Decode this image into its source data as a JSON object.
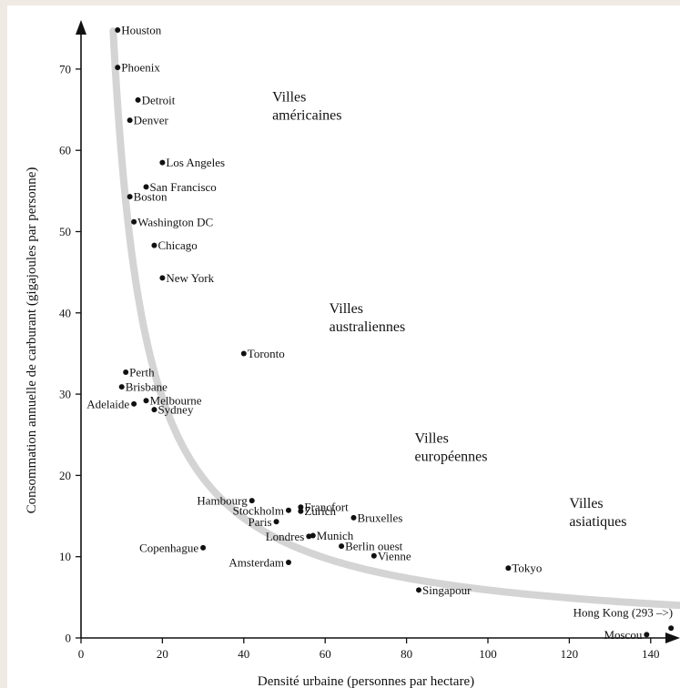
{
  "chart_data": {
    "type": "scatter",
    "xlabel": "Densité urbaine (personnes par hectare)",
    "ylabel": "Consommation annuelle de carburant (gigajoules  par personne)",
    "xlim": [
      0,
      147
    ],
    "ylim": [
      0,
      76
    ],
    "x_ticks": [
      0,
      20,
      40,
      60,
      80,
      100,
      120,
      140
    ],
    "y_ticks": [
      0,
      10,
      20,
      30,
      40,
      50,
      60,
      70
    ],
    "grid": false,
    "legend": "none",
    "trend_curve": "reciprocal (k/x)",
    "colors": {
      "points": "#111111",
      "curve": "#d4d4d4",
      "axis": "#111111"
    },
    "region_labels": [
      {
        "lines": [
          "Villes",
          "américaines"
        ],
        "x": 47,
        "y": 66
      },
      {
        "lines": [
          "Villes",
          "australiennes"
        ],
        "x": 61,
        "y": 40
      },
      {
        "lines": [
          "Villes",
          "européennes"
        ],
        "x": 82,
        "y": 24
      },
      {
        "lines": [
          "Villes",
          "asiatiques"
        ],
        "x": 120,
        "y": 16
      }
    ],
    "points": [
      {
        "label": "Houston",
        "x": 9,
        "y": 74.8,
        "side": "right"
      },
      {
        "label": "Phoenix",
        "x": 9,
        "y": 70.2,
        "side": "right"
      },
      {
        "label": "Detroit",
        "x": 14,
        "y": 66.2,
        "side": "right"
      },
      {
        "label": "Denver",
        "x": 12,
        "y": 63.7,
        "side": "right"
      },
      {
        "label": "Los Angeles",
        "x": 20,
        "y": 58.5,
        "side": "right"
      },
      {
        "label": "San Francisco",
        "x": 16,
        "y": 55.5,
        "side": "right"
      },
      {
        "label": "Boston",
        "x": 12,
        "y": 54.3,
        "side": "right"
      },
      {
        "label": "Washington DC",
        "x": 13,
        "y": 51.2,
        "side": "right"
      },
      {
        "label": "Chicago",
        "x": 18,
        "y": 48.3,
        "side": "right"
      },
      {
        "label": "New York",
        "x": 20,
        "y": 44.3,
        "side": "right"
      },
      {
        "label": "Toronto",
        "x": 40,
        "y": 35,
        "side": "right"
      },
      {
        "label": "Perth",
        "x": 11,
        "y": 32.7,
        "side": "right"
      },
      {
        "label": "Brisbane",
        "x": 10,
        "y": 30.9,
        "side": "right"
      },
      {
        "label": "Melbourne",
        "x": 16,
        "y": 29.2,
        "side": "right"
      },
      {
        "label": "Adelaide",
        "x": 13,
        "y": 28.8,
        "side": "left"
      },
      {
        "label": "Sydney",
        "x": 18,
        "y": 28.1,
        "side": "right"
      },
      {
        "label": "Hambourg",
        "x": 42,
        "y": 16.9,
        "side": "left"
      },
      {
        "label": "Francfort",
        "x": 54,
        "y": 16.1,
        "side": "right"
      },
      {
        "label": "Stockholm",
        "x": 51,
        "y": 15.7,
        "side": "left"
      },
      {
        "label": "Zurich",
        "x": 54,
        "y": 15.6,
        "side": "right"
      },
      {
        "label": "Bruxelles",
        "x": 67,
        "y": 14.8,
        "side": "right"
      },
      {
        "label": "Paris",
        "x": 48,
        "y": 14.3,
        "side": "left"
      },
      {
        "label": "Munich",
        "x": 57,
        "y": 12.6,
        "side": "right"
      },
      {
        "label": "Londres",
        "x": 56,
        "y": 12.5,
        "side": "left"
      },
      {
        "label": "Berlin ouest",
        "x": 64,
        "y": 11.3,
        "side": "right"
      },
      {
        "label": "Copenhague",
        "x": 30,
        "y": 11.1,
        "side": "left"
      },
      {
        "label": "Vienne",
        "x": 72,
        "y": 10.1,
        "side": "right"
      },
      {
        "label": "Amsterdam",
        "x": 51,
        "y": 9.3,
        "side": "left"
      },
      {
        "label": "Tokyo",
        "x": 105,
        "y": 8.6,
        "side": "right"
      },
      {
        "label": "Singapour",
        "x": 83,
        "y": 5.9,
        "side": "right"
      },
      {
        "label": "Hong Kong (293 –>)",
        "x": 145,
        "y": 1.2,
        "side": "above-left"
      },
      {
        "label": "Moscou",
        "x": 139,
        "y": 0.4,
        "side": "left"
      }
    ]
  }
}
